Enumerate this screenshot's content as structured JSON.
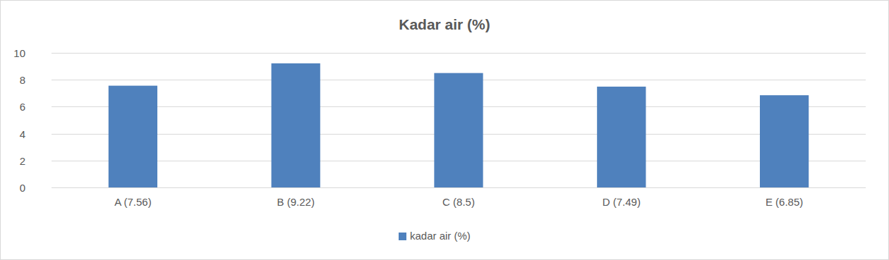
{
  "chart_data": {
    "type": "bar",
    "title": "Kadar air (%)",
    "categories": [
      "A (7.56)",
      "B (9.22)",
      "C (8.5)",
      "D (7.49)",
      "E (6.85)"
    ],
    "series": [
      {
        "name": "kadar air (%)",
        "color": "#4f81bd",
        "values": [
          7.56,
          9.22,
          8.5,
          7.49,
          6.85
        ]
      }
    ],
    "ylim": [
      0,
      10
    ],
    "yticks": [
      0,
      2,
      4,
      6,
      8,
      10
    ],
    "grid": true,
    "legend": "bottom"
  }
}
